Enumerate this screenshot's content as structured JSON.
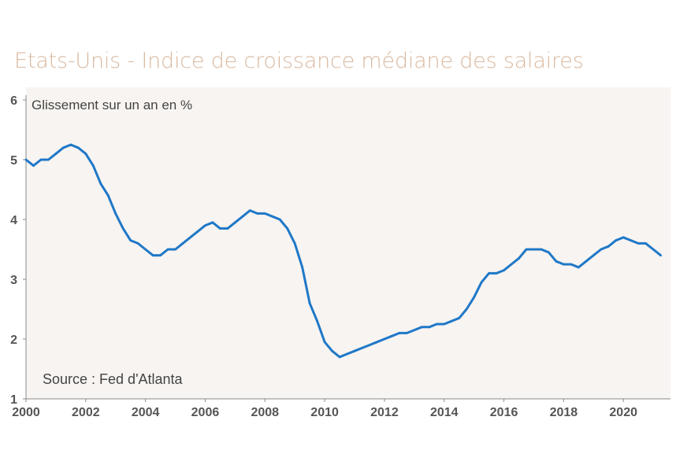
{
  "title": "Etats-Unis - Indice de croissance médiane des salaires",
  "chart_data": {
    "type": "line",
    "title": "Etats-Unis - Indice de croissance médiane des salaires",
    "ylabel": "Glissement sur un an en %",
    "xlabel": "",
    "source": "Source : Fed d'Atlanta",
    "xlim": [
      2000,
      2022
    ],
    "ylim": [
      1,
      6
    ],
    "xticks": [
      "2000",
      "2002",
      "2004",
      "2006",
      "2008",
      "2010",
      "2012",
      "2014",
      "2016",
      "2018",
      "2020"
    ],
    "yticks": [
      "1",
      "2",
      "3",
      "4",
      "5",
      "6"
    ],
    "colors": {
      "line": "#1f78c8",
      "plot_bg": "#f8f4f1",
      "title": "#d9b9a0",
      "axis": "#8a8a8a"
    },
    "series": [
      {
        "name": "Indice de croissance médiane des salaires",
        "x": [
          2000.0,
          2000.25,
          2000.5,
          2000.75,
          2001.0,
          2001.25,
          2001.5,
          2001.75,
          2002.0,
          2002.25,
          2002.5,
          2002.75,
          2003.0,
          2003.25,
          2003.5,
          2003.75,
          2004.0,
          2004.25,
          2004.5,
          2004.75,
          2005.0,
          2005.25,
          2005.5,
          2005.75,
          2006.0,
          2006.25,
          2006.5,
          2006.75,
          2007.0,
          2007.25,
          2007.5,
          2007.75,
          2008.0,
          2008.25,
          2008.5,
          2008.75,
          2009.0,
          2009.25,
          2009.5,
          2009.75,
          2010.0,
          2010.25,
          2010.5,
          2010.75,
          2011.0,
          2011.25,
          2011.5,
          2011.75,
          2012.0,
          2012.25,
          2012.5,
          2012.75,
          2013.0,
          2013.25,
          2013.5,
          2013.75,
          2014.0,
          2014.25,
          2014.5,
          2014.75,
          2015.0,
          2015.25,
          2015.5,
          2015.75,
          2016.0,
          2016.25,
          2016.5,
          2016.75,
          2017.0,
          2017.25,
          2017.5,
          2017.75,
          2018.0,
          2018.25,
          2018.5,
          2018.75,
          2019.0,
          2019.25,
          2019.5,
          2019.75,
          2020.0,
          2020.25,
          2020.5,
          2020.75,
          2021.0,
          2021.25
        ],
        "values": [
          5.0,
          4.9,
          5.0,
          5.0,
          5.1,
          5.2,
          5.25,
          5.2,
          5.1,
          4.9,
          4.6,
          4.4,
          4.1,
          3.85,
          3.65,
          3.6,
          3.5,
          3.4,
          3.4,
          3.5,
          3.5,
          3.6,
          3.7,
          3.8,
          3.9,
          3.95,
          3.85,
          3.85,
          3.95,
          4.05,
          4.15,
          4.1,
          4.1,
          4.05,
          4.0,
          3.85,
          3.6,
          3.2,
          2.6,
          2.3,
          1.95,
          1.8,
          1.7,
          1.75,
          1.8,
          1.85,
          1.9,
          1.95,
          2.0,
          2.05,
          2.1,
          2.1,
          2.15,
          2.2,
          2.2,
          2.25,
          2.25,
          2.3,
          2.35,
          2.5,
          2.7,
          2.95,
          3.1,
          3.1,
          3.15,
          3.25,
          3.35,
          3.5,
          3.5,
          3.5,
          3.45,
          3.3,
          3.25,
          3.25,
          3.2,
          3.3,
          3.4,
          3.5,
          3.55,
          3.65,
          3.7,
          3.65,
          3.6,
          3.6,
          3.5,
          3.4
        ]
      }
    ]
  }
}
